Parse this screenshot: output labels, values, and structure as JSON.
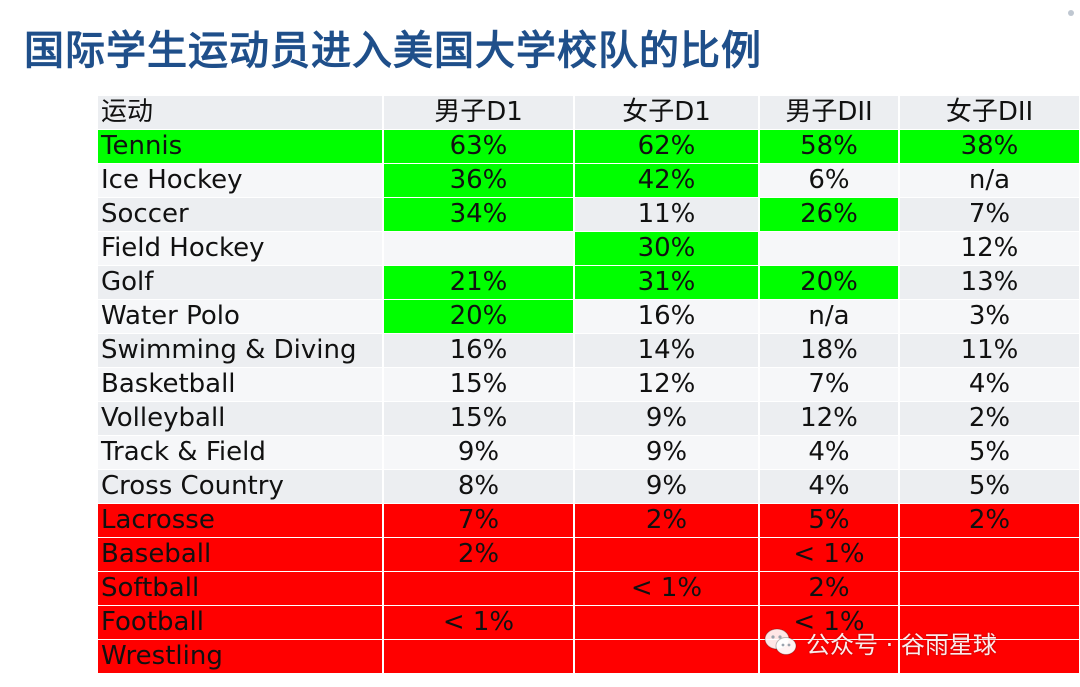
{
  "title": "国际学生运动员进入美国大学校队的比例",
  "table": {
    "headers": [
      "运动",
      "男子D1",
      "女子D1",
      "男子DII",
      "女子DII"
    ],
    "rows": [
      {
        "sport": "Tennis",
        "values": [
          "63%",
          "62%",
          "58%",
          "38%"
        ],
        "row_color": "green",
        "highlight": [
          true,
          true,
          true,
          true
        ]
      },
      {
        "sport": "Ice Hockey",
        "values": [
          "36%",
          "42%",
          "6%",
          "n/a"
        ],
        "row_color": "none",
        "highlight": [
          true,
          true,
          false,
          false
        ]
      },
      {
        "sport": "Soccer",
        "values": [
          "34%",
          "11%",
          "26%",
          "7%"
        ],
        "row_color": "none",
        "highlight": [
          true,
          false,
          true,
          false
        ]
      },
      {
        "sport": "Field Hockey",
        "values": [
          "",
          "30%",
          "",
          "12%"
        ],
        "row_color": "none",
        "highlight": [
          false,
          true,
          false,
          false
        ]
      },
      {
        "sport": "Golf",
        "values": [
          "21%",
          "31%",
          "20%",
          "13%"
        ],
        "row_color": "none",
        "highlight": [
          true,
          true,
          true,
          false
        ]
      },
      {
        "sport": "Water Polo",
        "values": [
          "20%",
          "16%",
          "n/a",
          "3%"
        ],
        "row_color": "none",
        "highlight": [
          true,
          false,
          false,
          false
        ]
      },
      {
        "sport": "Swimming & Diving",
        "values": [
          "16%",
          "14%",
          "18%",
          "11%"
        ],
        "row_color": "none",
        "highlight": [
          false,
          false,
          false,
          false
        ]
      },
      {
        "sport": "Basketball",
        "values": [
          "15%",
          "12%",
          "7%",
          "4%"
        ],
        "row_color": "none",
        "highlight": [
          false,
          false,
          false,
          false
        ]
      },
      {
        "sport": "Volleyball",
        "values": [
          "15%",
          "9%",
          "12%",
          "2%"
        ],
        "row_color": "none",
        "highlight": [
          false,
          false,
          false,
          false
        ]
      },
      {
        "sport": "Track & Field",
        "values": [
          "9%",
          "9%",
          "4%",
          "5%"
        ],
        "row_color": "none",
        "highlight": [
          false,
          false,
          false,
          false
        ]
      },
      {
        "sport": "Cross Country",
        "values": [
          "8%",
          "9%",
          "4%",
          "5%"
        ],
        "row_color": "none",
        "highlight": [
          false,
          false,
          false,
          false
        ]
      },
      {
        "sport": "Lacrosse",
        "values": [
          "7%",
          "2%",
          "5%",
          "2%"
        ],
        "row_color": "red",
        "highlight": [
          false,
          false,
          false,
          false
        ]
      },
      {
        "sport": "Baseball",
        "values": [
          "2%",
          "",
          "< 1%",
          ""
        ],
        "row_color": "red",
        "highlight": [
          false,
          false,
          false,
          false
        ]
      },
      {
        "sport": "Softball",
        "values": [
          "",
          "< 1%",
          "2%",
          ""
        ],
        "row_color": "red",
        "highlight": [
          false,
          false,
          false,
          false
        ]
      },
      {
        "sport": "Football",
        "values": [
          "< 1%",
          "",
          "< 1%",
          ""
        ],
        "row_color": "red",
        "highlight": [
          false,
          false,
          false,
          false
        ]
      },
      {
        "sport": "Wrestling",
        "values": [
          "",
          "",
          "",
          ""
        ],
        "row_color": "red",
        "highlight": [
          false,
          false,
          false,
          false
        ]
      }
    ]
  },
  "watermark": {
    "icon": "wechat-icon",
    "text": "公众号 · 谷雨星球"
  },
  "colors": {
    "title": "#1f4f8a",
    "green_highlight": "#00ff00",
    "red_row": "#ff0000",
    "cell_light": "#eceef1"
  }
}
